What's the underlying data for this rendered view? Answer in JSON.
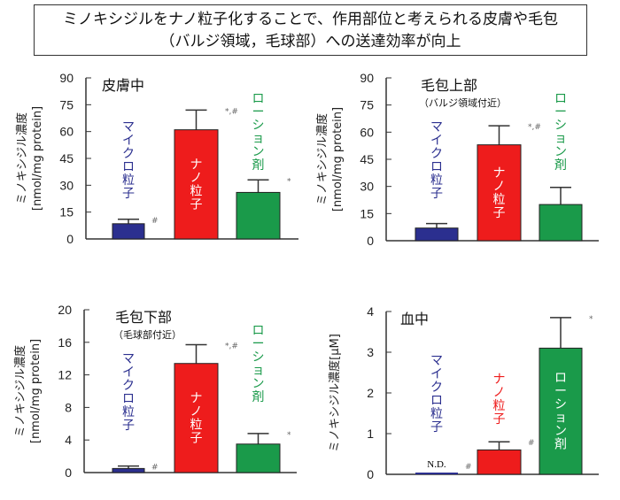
{
  "title": {
    "line1": "ミノキシジルをナノ粒子化することで、作用部位と考えられる皮膚や毛包",
    "line2": "（バルジ領域，毛球部）への送達効率が向上"
  },
  "chart_data": [
    {
      "type": "bar",
      "title": "皮膚中",
      "subtitle": "",
      "ylabel": [
        "ミノキシジル濃度",
        "[nmol/mg protein]"
      ],
      "ylim": [
        0,
        90
      ],
      "yticks": [
        0,
        15,
        30,
        45,
        60,
        75,
        90
      ],
      "categories": [
        "マイクロ粒子",
        "ナノ粒子",
        "ローション剤"
      ],
      "values": [
        8.5,
        61,
        26
      ],
      "errors": [
        2.5,
        11,
        7
      ],
      "marks": [
        "#",
        "*,#",
        "*"
      ]
    },
    {
      "type": "bar",
      "title": "毛包上部",
      "subtitle": "（バルジ領域付近）",
      "ylabel": [
        "ミノキシジル濃度",
        "[nmol/mg protein]"
      ],
      "ylim": [
        0,
        90
      ],
      "yticks": [
        0,
        15,
        30,
        45,
        60,
        75,
        90
      ],
      "categories": [
        "マイクロ粒子",
        "ナノ粒子",
        "ローション剤"
      ],
      "values": [
        7,
        53,
        20
      ],
      "errors": [
        2.5,
        10.5,
        9.5
      ],
      "marks": [
        "",
        "*,#",
        ""
      ]
    },
    {
      "type": "bar",
      "title": "毛包下部",
      "subtitle": "（毛球部付近）",
      "ylabel": [
        "ミノキシジル濃度",
        "[nmol/mg protein]"
      ],
      "ylim": [
        0,
        20
      ],
      "yticks": [
        0,
        4,
        8,
        12,
        16,
        20
      ],
      "categories": [
        "マイクロ粒子",
        "ナノ粒子",
        "ローション剤"
      ],
      "values": [
        0.5,
        13.4,
        3.5
      ],
      "errors": [
        0.3,
        2.3,
        1.3
      ],
      "marks": [
        "#",
        "*,#",
        "*"
      ]
    },
    {
      "type": "bar",
      "title": "血中",
      "subtitle": "",
      "ylabel": [
        "ミノキシジル濃度[μM]"
      ],
      "ylim": [
        0,
        4
      ],
      "yticks": [
        0,
        1,
        2,
        3,
        4
      ],
      "categories": [
        "マイクロ粒子",
        "ナノ粒子",
        "ローション剤"
      ],
      "values": [
        0,
        0.6,
        3.1
      ],
      "errors": [
        0,
        0.2,
        0.75
      ],
      "marks": [
        "#",
        "#",
        "*"
      ],
      "value_labels": [
        "N.D.",
        "",
        ""
      ]
    }
  ],
  "colors": {
    "micro": "#2b2f8f",
    "nano": "#ee1c1c",
    "lotion": "#1a9a4a"
  }
}
